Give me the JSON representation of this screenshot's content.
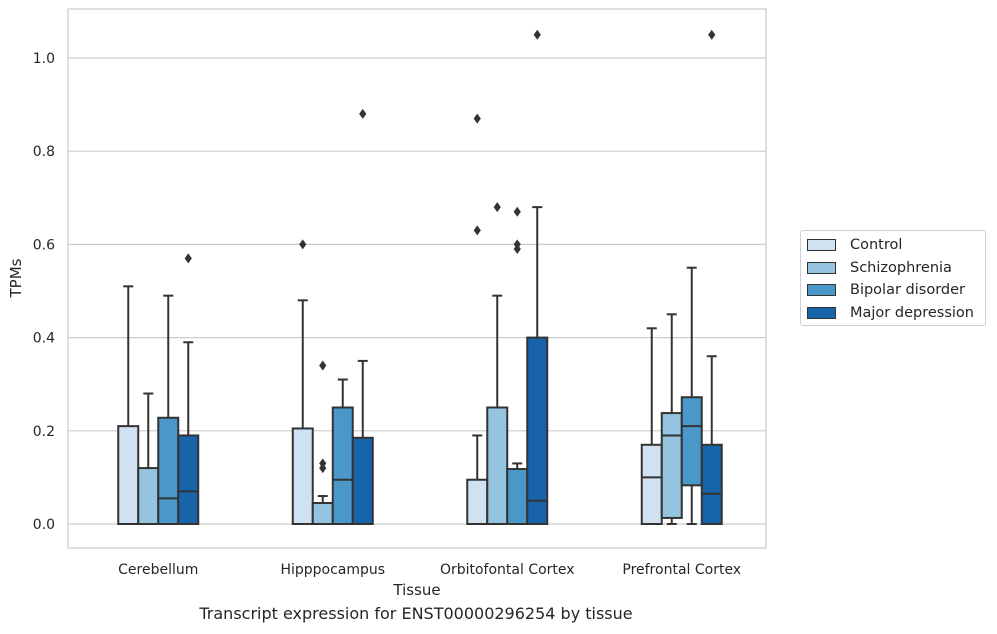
{
  "chart_data": {
    "type": "box",
    "title": "",
    "caption": "Transcript expression for ENST00000296254 by tissue",
    "xlabel": "Tissue",
    "ylabel": "TPMs",
    "ylim": [
      -0.05,
      1.1
    ],
    "yticks": [
      0.0,
      0.2,
      0.4,
      0.6,
      0.8,
      1.0
    ],
    "ytick_labels": [
      "0.0",
      "0.2",
      "0.4",
      "0.6",
      "0.8",
      "1.0"
    ],
    "grid": "horizontal",
    "legend_position": "right",
    "categories": [
      "Cerebellum",
      "Hipppocampus",
      "Orbitofontal Cortex",
      "Prefrontal Cortex"
    ],
    "series": [
      {
        "name": "Control",
        "color": "#d0e1f2",
        "boxes": [
          {
            "min": 0.0,
            "q1": 0.0,
            "median": 0.0,
            "q3": 0.21,
            "max": 0.51,
            "outliers": []
          },
          {
            "min": 0.0,
            "q1": 0.0,
            "median": 0.0,
            "q3": 0.205,
            "max": 0.48,
            "outliers": [
              0.6
            ]
          },
          {
            "min": 0.0,
            "q1": 0.0,
            "median": 0.0,
            "q3": 0.095,
            "max": 0.19,
            "outliers": [
              0.63,
              0.87
            ]
          },
          {
            "min": 0.0,
            "q1": 0.0,
            "median": 0.1,
            "q3": 0.17,
            "max": 0.42,
            "outliers": []
          }
        ]
      },
      {
        "name": "Schizophrenia",
        "color": "#94c4df",
        "boxes": [
          {
            "min": 0.0,
            "q1": 0.0,
            "median": 0.0,
            "q3": 0.12,
            "max": 0.28,
            "outliers": []
          },
          {
            "min": 0.0,
            "q1": 0.0,
            "median": 0.045,
            "q3": 0.045,
            "max": 0.06,
            "outliers": [
              0.12,
              0.13,
              0.34
            ]
          },
          {
            "min": 0.0,
            "q1": 0.0,
            "median": 0.0,
            "q3": 0.25,
            "max": 0.49,
            "outliers": [
              0.68
            ]
          },
          {
            "min": 0.0,
            "q1": 0.013,
            "median": 0.19,
            "q3": 0.238,
            "max": 0.45,
            "outliers": []
          }
        ]
      },
      {
        "name": "Bipolar disorder",
        "color": "#4a98c9",
        "boxes": [
          {
            "min": 0.0,
            "q1": 0.0,
            "median": 0.055,
            "q3": 0.228,
            "max": 0.49,
            "outliers": []
          },
          {
            "min": 0.0,
            "q1": 0.0,
            "median": 0.095,
            "q3": 0.25,
            "max": 0.31,
            "outliers": []
          },
          {
            "min": 0.0,
            "q1": 0.0,
            "median": 0.0,
            "q3": 0.118,
            "max": 0.13,
            "outliers": [
              0.59,
              0.6,
              0.67
            ]
          },
          {
            "min": 0.0,
            "q1": 0.083,
            "median": 0.21,
            "q3": 0.272,
            "max": 0.55,
            "outliers": []
          }
        ]
      },
      {
        "name": "Major depression",
        "color": "#1764ab",
        "boxes": [
          {
            "min": 0.0,
            "q1": 0.0,
            "median": 0.07,
            "q3": 0.19,
            "max": 0.39,
            "outliers": [
              0.57
            ]
          },
          {
            "min": 0.0,
            "q1": 0.0,
            "median": 0.0,
            "q3": 0.185,
            "max": 0.35,
            "outliers": [
              0.88
            ]
          },
          {
            "min": 0.0,
            "q1": 0.0,
            "median": 0.05,
            "q3": 0.4,
            "max": 0.68,
            "outliers": [
              1.05
            ]
          },
          {
            "min": 0.0,
            "q1": 0.0,
            "median": 0.065,
            "q3": 0.17,
            "max": 0.36,
            "outliers": [
              1.05
            ]
          }
        ]
      }
    ]
  }
}
